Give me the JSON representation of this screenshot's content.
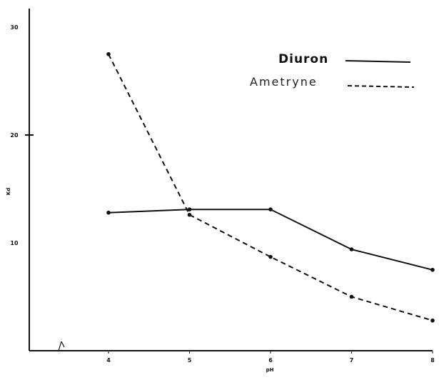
{
  "chart_data": {
    "type": "line",
    "title": "",
    "xlabel": "pH",
    "ylabel": "Kd",
    "x": [
      4,
      5,
      6,
      7,
      8
    ],
    "xticks": [
      "4",
      "5",
      "6",
      "7",
      "8"
    ],
    "yticks": [
      "10",
      "20",
      "30"
    ],
    "xlim": [
      3.25,
      8
    ],
    "ylim": [
      0,
      30
    ],
    "grid": false,
    "legend_position": "top-right",
    "series": [
      {
        "name": "Diuron",
        "style": "solid",
        "color": "#111111",
        "values": [
          12.8,
          13.1,
          13.1,
          9.4,
          7.5
        ]
      },
      {
        "name": "Ametryne",
        "style": "dashed",
        "color": "#111111",
        "values": [
          27.5,
          12.6,
          8.7,
          5.0,
          2.8
        ]
      }
    ]
  }
}
